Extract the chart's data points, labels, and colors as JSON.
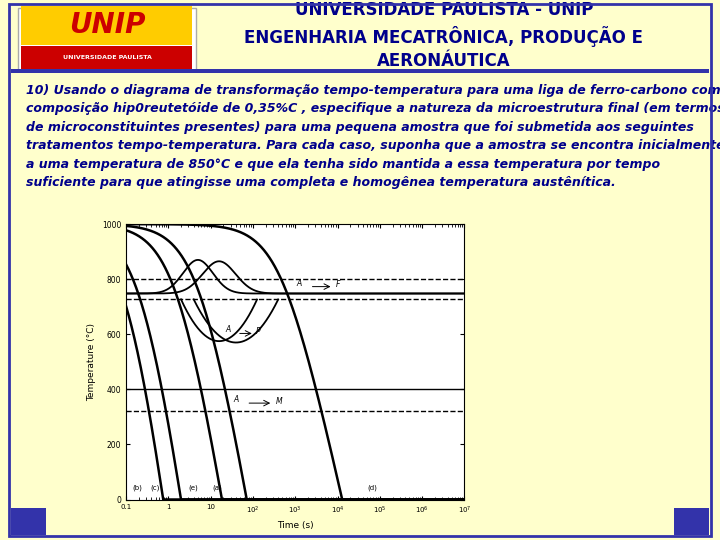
{
  "header_bg": "#FFFFCC",
  "header_text": "UNIVERSIDADE PAULISTA - UNIP\nENGENHARIA MECATRÔNICA, PRODUÇÃO E\nAERONÁUTICA",
  "header_text_color": "#00008B",
  "header_font_size": 12,
  "body_bg": "#CCE5FF",
  "body_text_color": "#00008B",
  "body_font_size": 9.0,
  "body_text": "10) Usando o diagrama de transformação tempo-temperatura para uma liga de ferro-carbono com\ncomposição hip0reutetóide de 0,35%C , especifique a natureza da microestrutura final (em termos\nde microconstituintes presentes) para uma pequena amostra que foi submetida aos seguintes\ntratamentos tempo-temperatura. Para cada caso, suponha que a amostra se encontra inicialmente\na uma temperatura de 850°C e que ela tenha sido mantida a essa temperatura por tempo\nsuficiente para que atingisse uma completa e homogênea temperatura austênítica.",
  "outer_border_color": "#3333AA",
  "bottom_strip_color": "#3333AA",
  "ax_label_x": "Time (s)",
  "ax_label_y": "Temperature (°C)"
}
